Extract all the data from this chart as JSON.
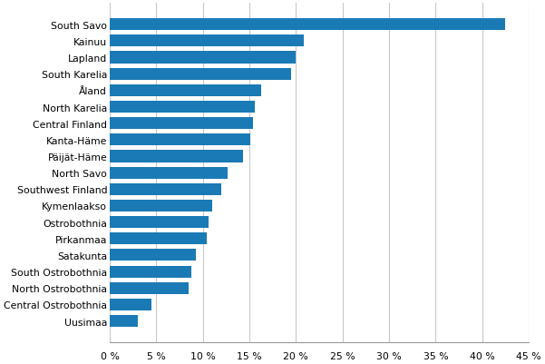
{
  "categories": [
    "Uusimaa",
    "Central Ostrobothnia",
    "North Ostrobothnia",
    "South Ostrobothnia",
    "Satakunta",
    "Pirkanmaa",
    "Ostrobothnia",
    "Kymenlaakso",
    "Southwest Finland",
    "North Savo",
    "Päijät-Häme",
    "Kanta-Häme",
    "Central Finland",
    "North Karelia",
    "Åland",
    "South Karelia",
    "Lapland",
    "Kainuu",
    "South Savo"
  ],
  "values": [
    3.0,
    4.5,
    8.5,
    8.8,
    9.3,
    10.4,
    10.6,
    11.0,
    12.0,
    12.7,
    14.3,
    15.1,
    15.4,
    15.6,
    16.3,
    19.5,
    20.0,
    20.8,
    42.5
  ],
  "bar_color": "#1a7ab5",
  "xlim": [
    0,
    45
  ],
  "xticks": [
    0,
    5,
    10,
    15,
    20,
    25,
    30,
    35,
    40,
    45
  ],
  "xlabel": "",
  "ylabel": "",
  "title": "",
  "background_color": "#ffffff",
  "grid_color": "#c8c8c8",
  "bar_height": 0.72,
  "label_fontsize": 7.8,
  "tick_fontsize": 7.8
}
